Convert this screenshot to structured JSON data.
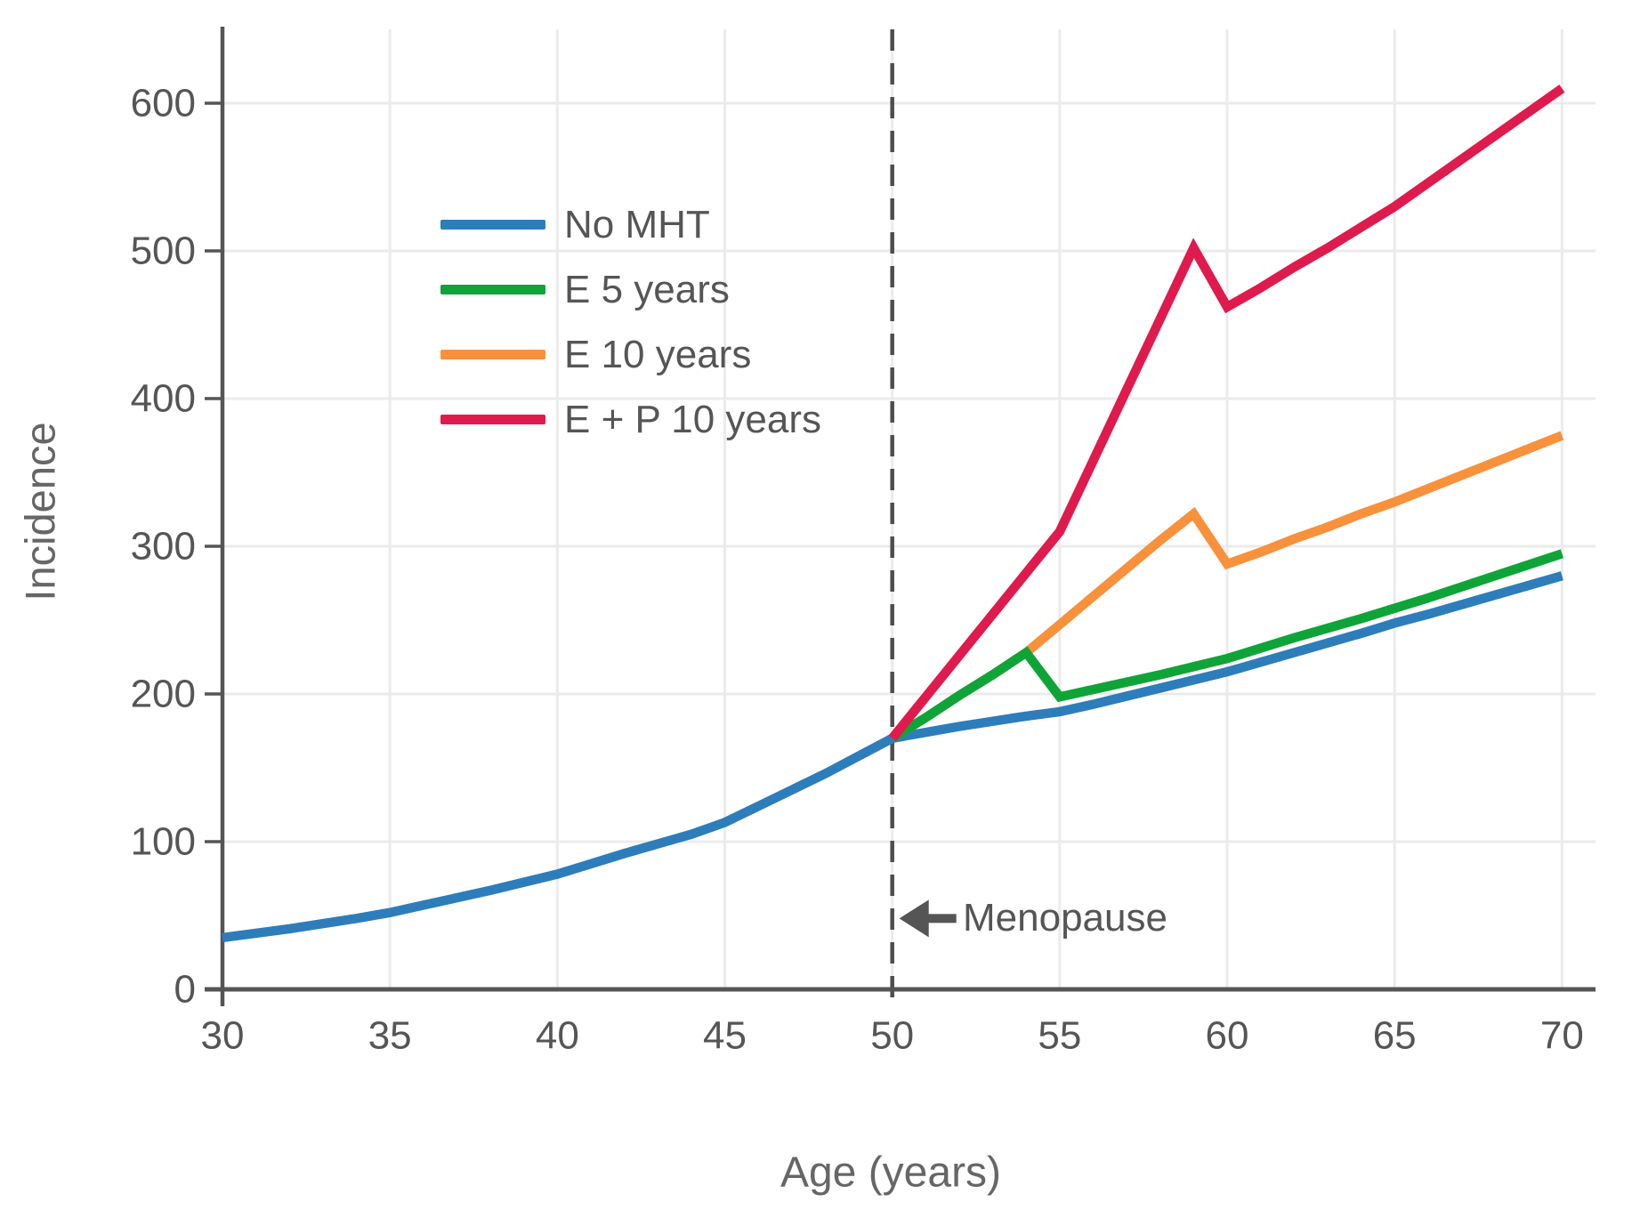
{
  "chart_data": {
    "type": "line",
    "title": "",
    "xlabel": "Age (years)",
    "ylabel": "Incidence",
    "xlim": [
      30,
      71
    ],
    "ylim": [
      0,
      650
    ],
    "xticks": [
      30,
      35,
      40,
      45,
      50,
      55,
      60,
      65,
      70
    ],
    "yticks": [
      0,
      100,
      200,
      300,
      400,
      500,
      600
    ],
    "grid": true,
    "legend_position": "upper-left-inside",
    "colors": {
      "background": "#ffffff",
      "grid": "#ebebeb",
      "axis": "#555555",
      "tick_labels": "#555555",
      "axis_titles": "#666666",
      "dashed_line": "#4d4d4d",
      "annotation": "#555555"
    },
    "vline": {
      "x": 50,
      "style": "dashed"
    },
    "annotation": {
      "text": "Menopause",
      "x": 50,
      "y": 48,
      "direction": "left"
    },
    "series": [
      {
        "name": "No MHT",
        "color": "#2d7dbb",
        "points": [
          [
            30,
            35
          ],
          [
            32,
            41
          ],
          [
            34,
            48
          ],
          [
            35,
            52
          ],
          [
            36,
            57
          ],
          [
            38,
            67
          ],
          [
            40,
            78
          ],
          [
            42,
            92
          ],
          [
            44,
            105
          ],
          [
            45,
            113
          ],
          [
            46,
            124
          ],
          [
            48,
            146
          ],
          [
            50,
            170
          ],
          [
            52,
            178
          ],
          [
            54,
            185
          ],
          [
            55,
            188
          ],
          [
            56,
            193
          ],
          [
            58,
            204
          ],
          [
            60,
            215
          ],
          [
            62,
            228
          ],
          [
            64,
            241
          ],
          [
            65,
            248
          ],
          [
            66,
            254
          ],
          [
            68,
            267
          ],
          [
            70,
            280
          ]
        ]
      },
      {
        "name": "E 5 years",
        "color": "#0fa437",
        "points": [
          [
            50,
            170
          ],
          [
            51,
            184
          ],
          [
            52,
            199
          ],
          [
            53,
            213
          ],
          [
            54,
            228
          ],
          [
            55,
            198
          ],
          [
            56,
            203
          ],
          [
            58,
            213
          ],
          [
            60,
            224
          ],
          [
            62,
            238
          ],
          [
            64,
            251
          ],
          [
            65,
            258
          ],
          [
            66,
            265
          ],
          [
            68,
            280
          ],
          [
            70,
            295
          ]
        ]
      },
      {
        "name": "E 10 years",
        "color": "#f8913c",
        "points": [
          [
            50,
            170
          ],
          [
            51,
            184
          ],
          [
            52,
            199
          ],
          [
            53,
            213
          ],
          [
            54,
            228
          ],
          [
            55,
            247
          ],
          [
            56,
            266
          ],
          [
            57,
            285
          ],
          [
            58,
            304
          ],
          [
            59,
            322
          ],
          [
            60,
            288
          ],
          [
            61,
            296
          ],
          [
            62,
            305
          ],
          [
            63,
            313
          ],
          [
            64,
            322
          ],
          [
            65,
            330
          ],
          [
            66,
            339
          ],
          [
            67,
            348
          ],
          [
            68,
            357
          ],
          [
            69,
            366
          ],
          [
            70,
            375
          ]
        ]
      },
      {
        "name": "E + P 10 years",
        "color": "#df1a4c",
        "points": [
          [
            50,
            170
          ],
          [
            55,
            310
          ],
          [
            56,
            358
          ],
          [
            57,
            406
          ],
          [
            58,
            454
          ],
          [
            59,
            502
          ],
          [
            60,
            462
          ],
          [
            61,
            475
          ],
          [
            62,
            489
          ],
          [
            63,
            502
          ],
          [
            64,
            516
          ],
          [
            65,
            530
          ],
          [
            66,
            546
          ],
          [
            67,
            562
          ],
          [
            68,
            578
          ],
          [
            69,
            594
          ],
          [
            70,
            610
          ]
        ]
      }
    ]
  }
}
